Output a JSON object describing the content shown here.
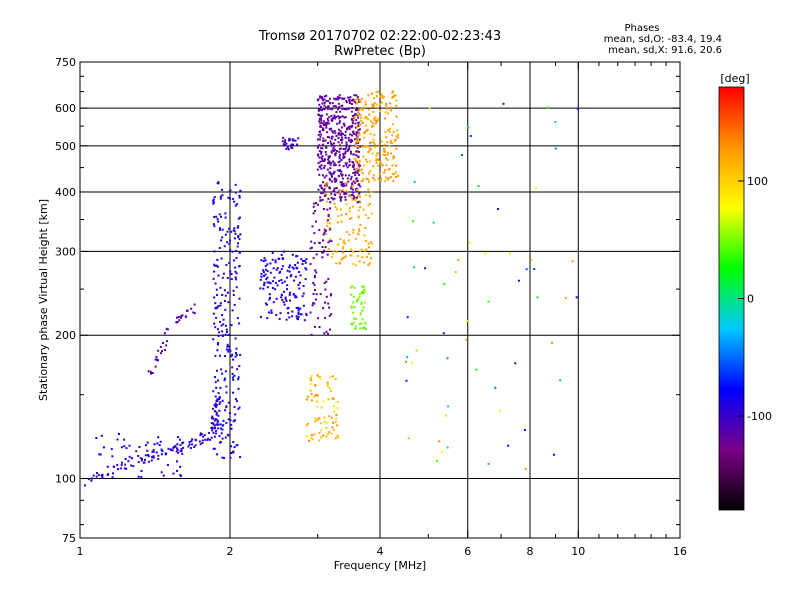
{
  "chart_data": {
    "type": "scatter",
    "title": "Tromsø 20170702 02:22:00-02:23:43",
    "subtitle": "RwPretec (Bp)",
    "info": {
      "heading": "Phases",
      "line1": "mean, sd,O: -83.4, 19.4",
      "line2": "mean, sd,X:  91.6, 20.6"
    },
    "xlabel": "Frequency [MHz]",
    "ylabel": "Stationary phase Virtual Height [km]",
    "x_scale": "log",
    "y_scale": "log",
    "xlim": [
      1,
      16
    ],
    "ylim": [
      75,
      750
    ],
    "x_ticks": [
      1,
      2,
      4,
      6,
      8,
      10,
      16
    ],
    "x_tick_labels": [
      "1",
      "2",
      "4",
      "6",
      "8",
      "10",
      "16"
    ],
    "y_ticks": [
      75,
      100,
      200,
      300,
      400,
      500,
      600,
      750
    ],
    "y_tick_labels": [
      "75",
      "100",
      "200",
      "300",
      "400",
      "500",
      "600",
      "750"
    ],
    "x_gridlines": [
      2,
      4,
      6,
      8,
      10
    ],
    "y_gridlines": [
      100,
      200,
      300,
      400,
      500,
      600
    ],
    "grid": true,
    "colorbar": {
      "label": "[deg]",
      "range": [
        -180,
        180
      ],
      "ticks": [
        100,
        0,
        -100
      ],
      "tick_labels": [
        "100",
        "0",
        "-100"
      ],
      "colors": [
        "#000000",
        "#7a0088",
        "#0000ff",
        "#00c8ff",
        "#00ff00",
        "#ffff00",
        "#ff9600",
        "#ff0000"
      ]
    },
    "clusters": [
      {
        "name": "low-trace",
        "n": 120,
        "f": [
          1.0,
          1.9
        ],
        "h": [
          97,
          160
        ],
        "phase": [
          -110,
          -80
        ],
        "mode": "curve",
        "curve": [
          [
            1.0,
            97
          ],
          [
            1.3,
            110
          ],
          [
            1.6,
            115
          ],
          [
            1.85,
            125
          ],
          [
            1.9,
            150
          ]
        ]
      },
      {
        "name": "low-band",
        "n": 60,
        "f": [
          1.05,
          1.65
        ],
        "h": [
          100,
          125
        ],
        "phase": [
          -95,
          -75
        ],
        "mode": "box"
      },
      {
        "name": "branch-1.4",
        "n": 40,
        "f": [
          1.35,
          1.75
        ],
        "h": [
          160,
          235
        ],
        "phase": [
          -120,
          -105
        ],
        "mode": "curve",
        "curve": [
          [
            1.38,
            165
          ],
          [
            1.45,
            185
          ],
          [
            1.55,
            215
          ],
          [
            1.7,
            228
          ]
        ]
      },
      {
        "name": "f2-column",
        "n": 260,
        "f": [
          1.85,
          2.1
        ],
        "h": [
          110,
          420
        ],
        "phase": [
          -105,
          -70
        ],
        "mode": "box"
      },
      {
        "name": "f-2.4",
        "n": 150,
        "f": [
          2.3,
          2.85
        ],
        "h": [
          215,
          300
        ],
        "phase": [
          -95,
          -80
        ],
        "mode": "box"
      },
      {
        "name": "f-2.6",
        "n": 25,
        "f": [
          2.55,
          2.75
        ],
        "h": [
          490,
          520
        ],
        "phase": [
          -110,
          -90
        ],
        "mode": "box"
      },
      {
        "name": "blue-mass",
        "n": 520,
        "f": [
          3.0,
          3.65
        ],
        "h": [
          380,
          640
        ],
        "phase": [
          -125,
          -110
        ],
        "mode": "box"
      },
      {
        "name": "blue-low",
        "n": 80,
        "f": [
          2.9,
          3.2
        ],
        "h": [
          200,
          380
        ],
        "phase": [
          -125,
          -105
        ],
        "mode": "box"
      },
      {
        "name": "yellow-upper",
        "n": 220,
        "f": [
          3.55,
          4.35
        ],
        "h": [
          420,
          650
        ],
        "phase": [
          110,
          135
        ],
        "mode": "box"
      },
      {
        "name": "yellow-mid",
        "n": 120,
        "f": [
          3.1,
          3.85
        ],
        "h": [
          280,
          420
        ],
        "phase": [
          105,
          130
        ],
        "mode": "box"
      },
      {
        "name": "green-blob",
        "n": 50,
        "f": [
          3.5,
          3.75
        ],
        "h": [
          205,
          255
        ],
        "phase": [
          35,
          60
        ],
        "mode": "box"
      },
      {
        "name": "yellow-low",
        "n": 80,
        "f": [
          2.85,
          3.3
        ],
        "h": [
          120,
          165
        ],
        "phase": [
          80,
          140
        ],
        "mode": "box"
      },
      {
        "name": "sparse",
        "n": 60,
        "f": [
          4.5,
          10.0
        ],
        "h": [
          100,
          620
        ],
        "phase": [
          -120,
          140
        ],
        "mode": "box"
      }
    ]
  }
}
